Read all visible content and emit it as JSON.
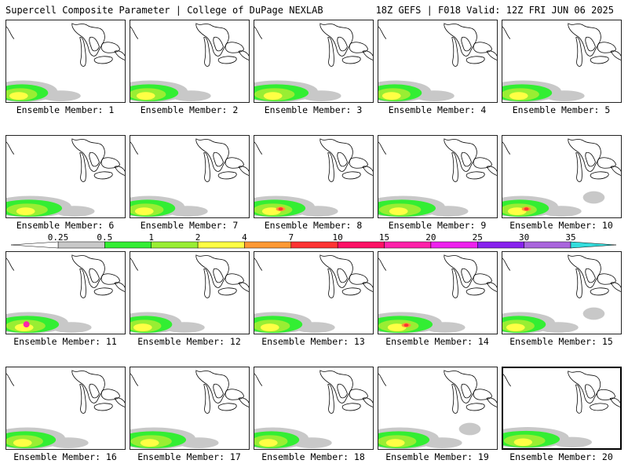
{
  "header": {
    "title": "Supercell Composite Parameter | College of DuPage NEXLAB",
    "run_info": "18Z GEFS | F018 Valid: 12Z FRI JUN 06 2025"
  },
  "colorbar": {
    "levels": [
      "0.25",
      "0.5",
      "1",
      "2",
      "4",
      "7",
      "10",
      "15",
      "20",
      "25",
      "30",
      "35"
    ],
    "colors": [
      "#c8c8c8",
      "#33ee33",
      "#99ee33",
      "#ffff44",
      "#ff9933",
      "#ff3333",
      "#ff1166",
      "#ff22aa",
      "#ee22ee",
      "#8822ee",
      "#aa66dd",
      "#33dddd"
    ]
  },
  "map_colors": {
    "gray": "#c8c8c8",
    "green": "#33ee33",
    "lime": "#99ee33",
    "yellow": "#ffff44",
    "orange": "#ff9933",
    "red": "#ff3333",
    "magenta": "#ff22aa"
  },
  "members": [
    {
      "label": "Ensemble Member: 1"
    },
    {
      "label": "Ensemble Member: 2"
    },
    {
      "label": "Ensemble Member: 3"
    },
    {
      "label": "Ensemble Member: 4"
    },
    {
      "label": "Ensemble Member: 5"
    },
    {
      "label": "Ensemble Member: 6"
    },
    {
      "label": "Ensemble Member: 7"
    },
    {
      "label": "Ensemble Member: 8"
    },
    {
      "label": "Ensemble Member: 9"
    },
    {
      "label": "Ensemble Member: 10"
    },
    {
      "label": "Ensemble Member: 11"
    },
    {
      "label": "Ensemble Member: 12"
    },
    {
      "label": "Ensemble Member: 13"
    },
    {
      "label": "Ensemble Member: 14"
    },
    {
      "label": "Ensemble Member: 15"
    },
    {
      "label": "Ensemble Member: 16"
    },
    {
      "label": "Ensemble Member: 17"
    },
    {
      "label": "Ensemble Member: 18"
    },
    {
      "label": "Ensemble Member: 19"
    },
    {
      "label": "Ensemble Member: 20"
    }
  ]
}
